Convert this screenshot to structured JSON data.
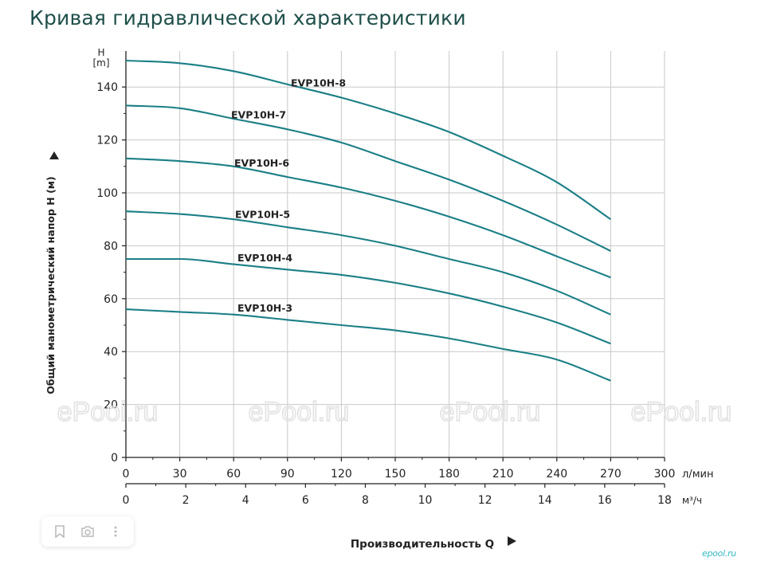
{
  "page": {
    "title": "Кривая гидравлической характеристики"
  },
  "watermark": {
    "text": "ePool.ru"
  },
  "logo": {
    "text": "epool.ru"
  },
  "toolbar": {
    "icons": [
      "bookmark-icon",
      "camera-search-icon",
      "more-icon"
    ]
  },
  "colors": {
    "curve": "#1b7f86",
    "grid": "#c9c9c9",
    "axis": "#222222",
    "title": "#1f4f4a",
    "logo": "#35b9c4"
  },
  "chart_data": {
    "type": "line",
    "title": "",
    "xlabel": "Производительность Q",
    "x_unit": "л/мин",
    "x2_unit": "м³/ч",
    "ylabel": "Общий манометрический напор H (м)",
    "y_unit_top": "H",
    "y_unit_bottom": "[m]",
    "xlim": [
      0,
      300
    ],
    "ylim": [
      0,
      150
    ],
    "x_ticks": [
      "0",
      "30",
      "60",
      "90",
      "120",
      "150",
      "180",
      "210",
      "240",
      "270",
      "300"
    ],
    "x2_ticks": [
      "0",
      "2",
      "4",
      "6",
      "8",
      "10",
      "12",
      "14",
      "16",
      "18"
    ],
    "y_ticks": [
      "0",
      "20",
      "40",
      "60",
      "80",
      "100",
      "120",
      "140"
    ],
    "grid": true,
    "x": [
      0,
      30,
      60,
      90,
      120,
      150,
      180,
      210,
      240,
      270
    ],
    "series": [
      {
        "name": "EVP10H-8",
        "values": [
          150,
          149,
          146,
          141,
          136,
          130,
          123,
          114,
          104,
          90
        ]
      },
      {
        "name": "EVP10H-7",
        "values": [
          133,
          132,
          128,
          124,
          119,
          112,
          105,
          97,
          88,
          78
        ]
      },
      {
        "name": "EVP10H-6",
        "values": [
          113,
          112,
          110,
          106,
          102,
          97,
          91,
          84,
          76,
          68
        ]
      },
      {
        "name": "EVP10H-5",
        "values": [
          93,
          92,
          90,
          87,
          84,
          80,
          75,
          70,
          63,
          54
        ]
      },
      {
        "name": "EVP10H-4",
        "values": [
          75,
          75,
          73,
          71,
          69,
          66,
          62,
          57,
          51,
          43
        ]
      },
      {
        "name": "EVP10H-3",
        "values": [
          56,
          55,
          54,
          52,
          50,
          48,
          45,
          41,
          37,
          29
        ]
      }
    ]
  }
}
